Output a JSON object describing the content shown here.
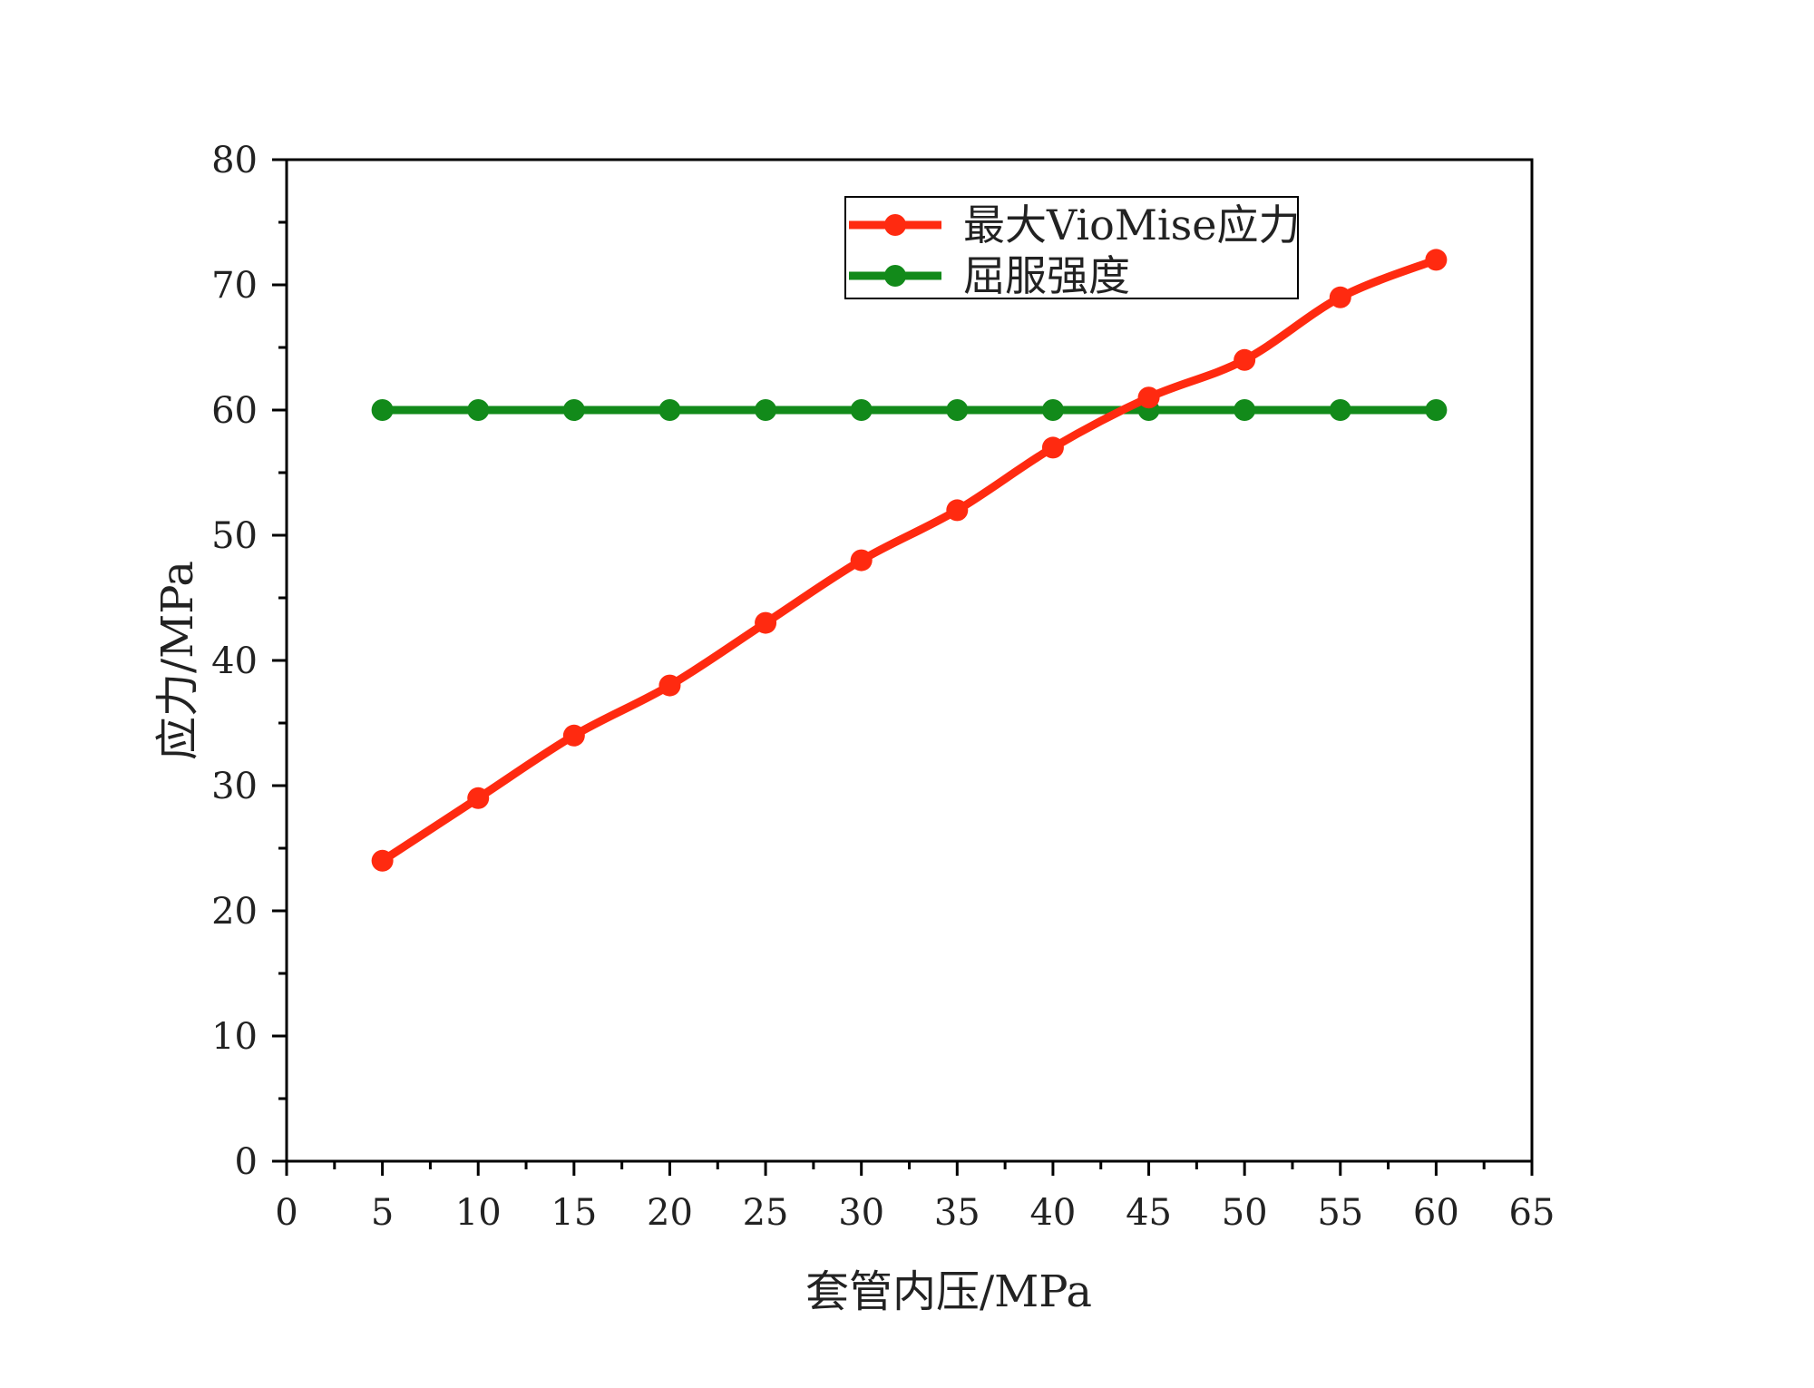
{
  "chart_data": {
    "type": "line",
    "title": "",
    "xlabel": "套管内压/MPa",
    "ylabel": "应力/MPa",
    "xlim": [
      0,
      65
    ],
    "ylim": [
      0,
      80
    ],
    "x_ticks": [
      0,
      5,
      10,
      15,
      20,
      25,
      30,
      35,
      40,
      45,
      50,
      55,
      60,
      65
    ],
    "y_ticks": [
      0,
      10,
      20,
      30,
      40,
      50,
      60,
      70,
      80
    ],
    "x": [
      5,
      10,
      15,
      20,
      25,
      30,
      35,
      40,
      45,
      50,
      55,
      60
    ],
    "grid": false,
    "legend_position": "top-right",
    "series": [
      {
        "name": "最大VioMise应力",
        "color": "#ff2a10",
        "marker": "circle",
        "values": [
          24,
          29,
          34,
          38,
          43,
          48,
          52,
          57,
          61,
          64,
          69,
          72
        ]
      },
      {
        "name": "屈服强度",
        "color": "#128a1a",
        "marker": "circle",
        "values": [
          60,
          60,
          60,
          60,
          60,
          60,
          60,
          60,
          60,
          60,
          60,
          60
        ]
      }
    ]
  }
}
